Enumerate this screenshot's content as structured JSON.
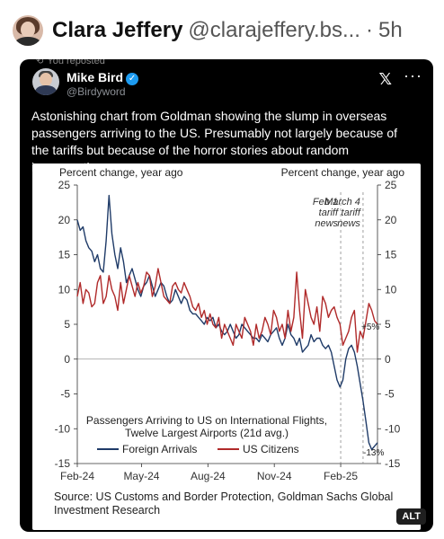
{
  "post": {
    "author_name": "Clara Jeffery",
    "author_handle": "@clarajeffery.bs...",
    "time_sep": "·",
    "time": "5h"
  },
  "quoted": {
    "repost_label": "You reposted",
    "name": "Mike Bird",
    "handle": "@Birdyword",
    "text": "Astonishing chart from Goldman showing the slump in overseas passengers arriving to the US. Presumably not largely because of the tariffs but because of the horror stories about random incarceration."
  },
  "image": {
    "source": "Source: US Customs and Border Protection, Goldman Sachs Global Investment Research",
    "alt_badge": "ALT"
  },
  "chart_data": {
    "type": "line",
    "title": "",
    "ylabel_left": "Percent change, year ago",
    "ylabel_right": "Percent change, year ago",
    "ylim": [
      -15,
      25
    ],
    "yticks": [
      25,
      20,
      15,
      10,
      5,
      0,
      -5,
      -10,
      -15
    ],
    "xlim": [
      0,
      400
    ],
    "xticks": [
      {
        "label": "Feb-24",
        "x": 0
      },
      {
        "label": "May-24",
        "x": 89
      },
      {
        "label": "Aug-24",
        "x": 181
      },
      {
        "label": "Nov-24",
        "x": 273
      },
      {
        "label": "Feb-25",
        "x": 365
      }
    ],
    "legend_title": "Passengers Arriving to US on International Flights, Twelve Largest Airports (21d avg.)",
    "legend_position": "bottom-center",
    "annotations": [
      {
        "text": "Feb 1 tariff news",
        "x": 365
      },
      {
        "text": "March 4 tariff news",
        "x": 396
      }
    ],
    "end_labels": [
      {
        "series": "US Citizens",
        "text": "+5%"
      },
      {
        "series": "Foreign Arrivals",
        "text": "-13%"
      }
    ],
    "series": [
      {
        "name": "Foreign Arrivals",
        "color": "#1f3b68",
        "x": [
          0,
          4,
          8,
          12,
          16,
          20,
          24,
          28,
          32,
          36,
          40,
          44,
          48,
          52,
          56,
          60,
          64,
          68,
          72,
          76,
          80,
          84,
          88,
          92,
          96,
          100,
          104,
          108,
          112,
          116,
          120,
          124,
          128,
          132,
          136,
          140,
          144,
          148,
          152,
          156,
          160,
          164,
          168,
          172,
          176,
          180,
          184,
          188,
          192,
          196,
          200,
          204,
          208,
          212,
          216,
          220,
          224,
          228,
          232,
          236,
          240,
          244,
          248,
          252,
          256,
          260,
          264,
          268,
          272,
          276,
          280,
          284,
          288,
          292,
          296,
          300,
          304,
          308,
          312,
          316,
          320,
          324,
          328,
          332,
          336,
          340,
          344,
          348,
          352,
          356,
          360,
          364,
          368,
          372,
          376,
          380,
          384,
          388,
          392,
          396,
          400,
          404,
          408,
          412,
          416
        ],
        "y": [
          20,
          18.5,
          19,
          17,
          16,
          15.5,
          14,
          15,
          13,
          12.5,
          17,
          23.5,
          18,
          15,
          13,
          16,
          14,
          11,
          12,
          13,
          11.5,
          10,
          9,
          10.5,
          11,
          12,
          10.5,
          9,
          10,
          11,
          10.5,
          9,
          8,
          8.5,
          10,
          9,
          8,
          9,
          8.5,
          7,
          6.5,
          6.5,
          6,
          5.5,
          5,
          6,
          5.5,
          6,
          4.5,
          5,
          4,
          3.5,
          4,
          5,
          4,
          3,
          3.5,
          5,
          4.5,
          4,
          3.5,
          3,
          3,
          2.5,
          3.5,
          3,
          2.5,
          3.5,
          4,
          4.5,
          3,
          2,
          3,
          5,
          3.5,
          3,
          2,
          3,
          1,
          1.5,
          2,
          3.5,
          2.5,
          3,
          3,
          2,
          1.5,
          2,
          1,
          -1,
          -3,
          -4,
          -3,
          0,
          1.5,
          2,
          1,
          -1,
          -3.5,
          -6,
          -9,
          -12,
          -13,
          -12.5,
          -12
        ]
      },
      {
        "name": "US Citizens",
        "color": "#b02a2a",
        "x": [
          0,
          4,
          8,
          12,
          16,
          20,
          24,
          28,
          32,
          36,
          40,
          44,
          48,
          52,
          56,
          60,
          64,
          68,
          72,
          76,
          80,
          84,
          88,
          92,
          96,
          100,
          104,
          108,
          112,
          116,
          120,
          124,
          128,
          132,
          136,
          140,
          144,
          148,
          152,
          156,
          160,
          164,
          168,
          172,
          176,
          180,
          184,
          188,
          192,
          196,
          200,
          204,
          208,
          212,
          216,
          220,
          224,
          228,
          232,
          236,
          240,
          244,
          248,
          252,
          256,
          260,
          264,
          268,
          272,
          276,
          280,
          284,
          288,
          292,
          296,
          300,
          304,
          308,
          312,
          316,
          320,
          324,
          328,
          332,
          336,
          340,
          344,
          348,
          352,
          356,
          360,
          364,
          368,
          372,
          376,
          380,
          384,
          388,
          392,
          396,
          400,
          404,
          408,
          412,
          416
        ],
        "y": [
          9,
          11,
          8,
          10,
          9.5,
          7.5,
          8,
          11,
          12,
          8,
          9,
          12,
          10,
          9,
          7,
          11,
          8,
          10,
          12,
          10.5,
          9,
          11,
          9.5,
          10.5,
          12.5,
          12,
          9,
          10.5,
          13,
          11,
          9,
          8.5,
          8,
          10.5,
          11,
          10,
          9.5,
          11,
          10,
          9,
          7.5,
          7,
          8,
          6,
          7,
          5,
          6.5,
          5,
          4.5,
          6,
          3,
          5,
          4,
          3,
          2,
          5,
          4,
          3,
          6,
          5,
          4,
          2,
          5,
          3,
          4,
          6,
          5,
          3.5,
          7,
          6,
          4,
          5,
          3,
          7,
          4,
          6,
          12.5,
          7,
          3,
          10,
          8,
          6,
          5,
          7.5,
          4,
          9,
          8,
          6,
          7,
          7.5,
          6,
          5,
          2,
          3,
          4,
          6,
          7,
          1,
          4,
          3,
          5.5,
          8,
          7,
          5.5,
          5
        ]
      }
    ]
  }
}
